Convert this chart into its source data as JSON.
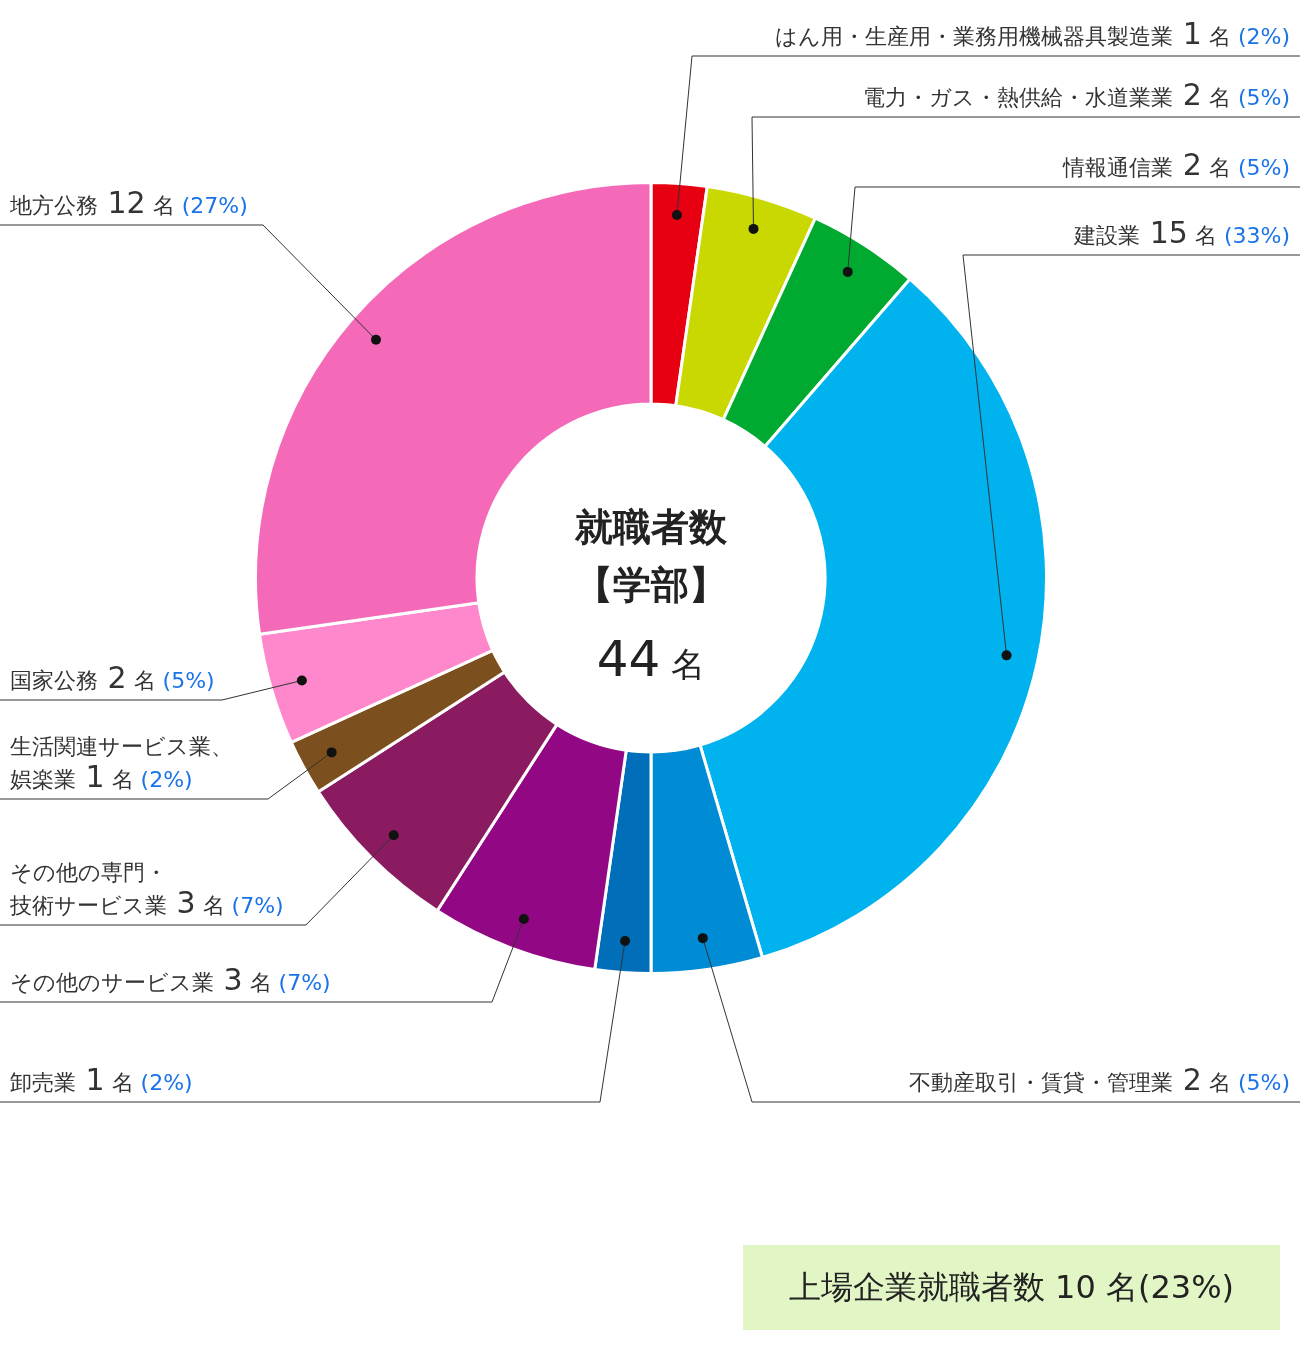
{
  "chart_data": {
    "type": "donut",
    "title": "就職者数【学部】",
    "subtitle": "44 名",
    "categories": [
      "はん用・生産用・業務用機械器具製造業",
      "電力・ガス・熱供給・水道業業",
      "情報通信業",
      "建設業",
      "不動産取引・賃貸・管理業",
      "卸売業",
      "その他のサービス業",
      "その他の専門・技術サービス業",
      "生活関連サービス業、娯楽業",
      "国家公務",
      "地方公務"
    ],
    "values": [
      1,
      2,
      2,
      15,
      2,
      1,
      3,
      3,
      1,
      2,
      12
    ],
    "colors": [
      "#e60012",
      "#c8d800",
      "#00a92f",
      "#00b2ee",
      "#008bd5",
      "#006eb8",
      "#920783",
      "#8a1b60",
      "#7b4f1e",
      "#ff88cc",
      "#f56ab8"
    ],
    "value_labels": [
      "1 名 (2%)",
      "2 名 (5%)",
      "2 名 (5%)",
      "15 名 (33%)",
      "2 名 (5%)",
      "1 名 (2%)",
      "3 名 (7%)",
      "3 名 (7%)",
      "1 名 (2%)",
      "2 名 (5%)",
      "12 名 (27%)"
    ],
    "annotations": [
      "上場企業就職者数 10 名(23%)"
    ],
    "legend": false
  }
}
